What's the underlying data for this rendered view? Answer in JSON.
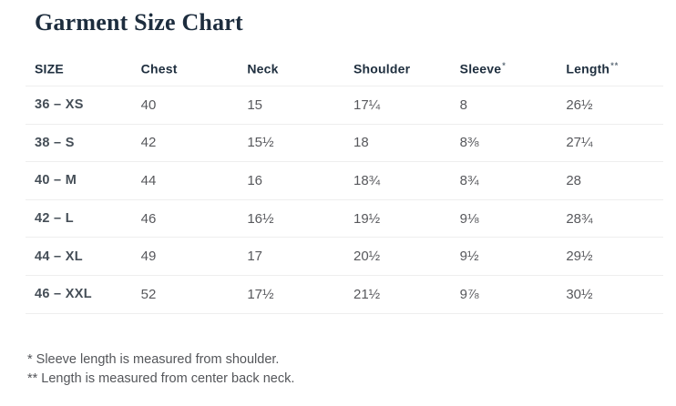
{
  "page": {
    "title": "Garment Size Chart"
  },
  "table": {
    "headers": [
      {
        "label": "SIZE",
        "note": ""
      },
      {
        "label": "Chest",
        "note": ""
      },
      {
        "label": "Neck",
        "note": ""
      },
      {
        "label": "Shoulder",
        "note": ""
      },
      {
        "label": "Sleeve",
        "note": "*"
      },
      {
        "label": "Length",
        "note": "**"
      }
    ],
    "rows": [
      [
        "36 – XS",
        "40",
        "15",
        "17¼",
        "8",
        "26½"
      ],
      [
        "38 – S",
        "42",
        "15½",
        "18",
        "8⅜",
        "27¼"
      ],
      [
        "40 – M",
        "44",
        "16",
        "18¾",
        "8¾",
        "28"
      ],
      [
        "42 – L",
        "46",
        "16½",
        "19½",
        "9⅛",
        "28¾"
      ],
      [
        "44 – XL",
        "49",
        "17",
        "20½",
        "9½",
        "29½"
      ],
      [
        "46 – XXL",
        "52",
        "17½",
        "21½",
        "9⅞",
        "30½"
      ]
    ]
  },
  "footnotes": [
    {
      "marker": "*",
      "text": "Sleeve length is measured from shoulder."
    },
    {
      "marker": "**",
      "text": "Length is measured from center back neck."
    }
  ],
  "colors": {
    "title": "#1d2d3e",
    "header_text": "#1e2e3e",
    "size_label": "#454e57",
    "value_text": "#57585c",
    "divider": "#eeeeee",
    "footnote_text": "#54565a",
    "background": "#ffffff"
  }
}
